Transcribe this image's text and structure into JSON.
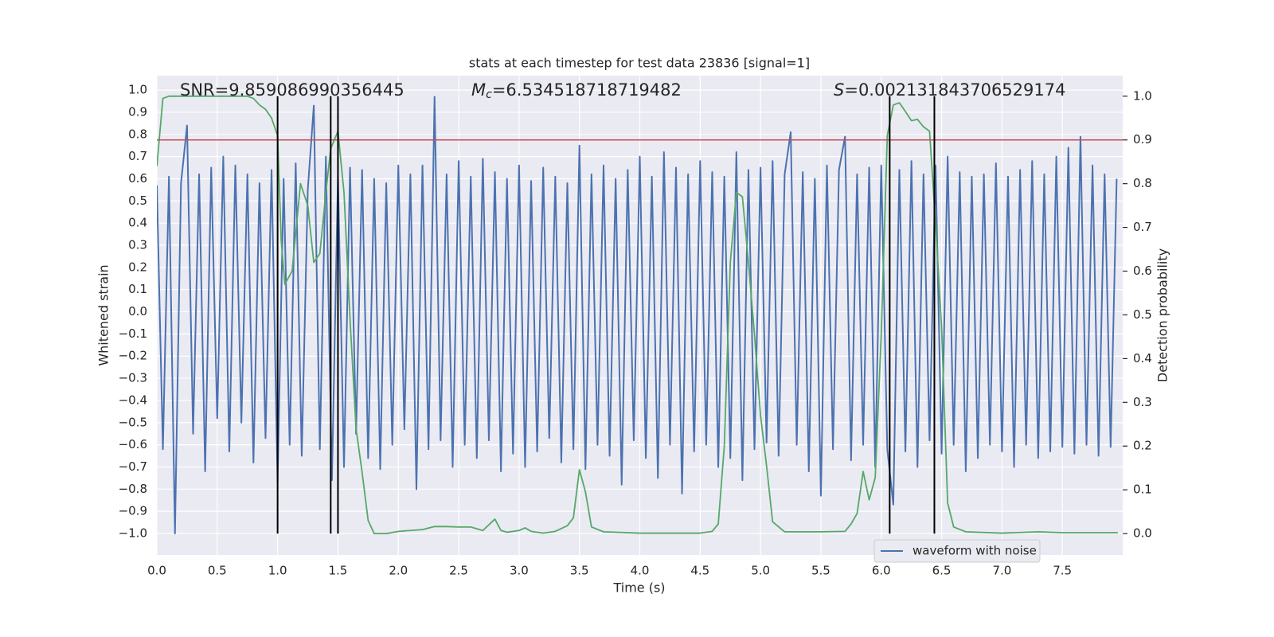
{
  "chart_data": {
    "type": "line",
    "title": "stats at each timestep for test data 23836 [signal=1]",
    "xlabel": "Time (s)",
    "ylabel": "Whitened strain",
    "y2label": "Detection probability",
    "annotations": [
      {
        "text": "SNR=9.859086990356445"
      },
      {
        "symbol": "M",
        "subscript": "c",
        "text": "=6.534518718719482"
      },
      {
        "symbol": "S",
        "text": "=0.002131843706529174"
      }
    ],
    "xlim": [
      0,
      8
    ],
    "ylim": [
      -1.097,
      1.065
    ],
    "y2lim": [
      -0.049,
      1.047
    ],
    "xticks": [
      {
        "value": 0,
        "label": "0.0"
      },
      0.5,
      {
        "value": 1,
        "label": "1.0"
      },
      1.5,
      {
        "value": 2,
        "label": "2.0"
      },
      2.5,
      {
        "value": 3,
        "label": "3.0"
      },
      3.5,
      {
        "value": 4,
        "label": "4.0"
      },
      4.5,
      {
        "value": 5,
        "label": "5.0"
      },
      5.5,
      {
        "value": 6,
        "label": "6.0"
      },
      6.5,
      {
        "value": 7,
        "label": "7.0"
      },
      7.5
    ],
    "yticks": [
      {
        "value": -1,
        "label": "−1.0"
      },
      {
        "value": -0.9,
        "label": "−0.9"
      },
      {
        "value": -0.8,
        "label": "−0.8"
      },
      {
        "value": -0.7,
        "label": "−0.7"
      },
      {
        "value": -0.6,
        "label": "−0.6"
      },
      {
        "value": -0.5,
        "label": "−0.5"
      },
      {
        "value": -0.4,
        "label": "−0.4"
      },
      {
        "value": -0.3,
        "label": "−0.3"
      },
      {
        "value": -0.2,
        "label": "−0.2"
      },
      {
        "value": -0.1,
        "label": "−0.1"
      },
      {
        "value": 0,
        "label": "0.0"
      },
      0.1,
      0.2,
      0.3,
      0.4,
      0.5,
      0.6,
      0.7,
      0.8,
      0.9,
      {
        "value": 1,
        "label": "1.0"
      }
    ],
    "y2ticks": [
      {
        "value": 0,
        "label": "0.0"
      },
      0.1,
      0.2,
      0.3,
      0.4,
      0.5,
      0.6,
      0.7,
      0.8,
      0.9,
      {
        "value": 1,
        "label": "1.0"
      }
    ],
    "grid": true,
    "legend": "lower right",
    "series": [
      {
        "name": "waveform with noise",
        "color": "#4c72b0",
        "x": [
          0,
          0.05,
          0.1,
          0.15,
          0.2,
          0.25,
          0.3,
          0.35,
          0.4,
          0.45,
          0.5,
          0.55,
          0.6,
          0.65,
          0.7,
          0.75,
          0.8,
          0.85,
          0.9,
          0.95,
          1,
          1.05,
          1.1,
          1.15,
          1.2,
          1.25,
          1.3,
          1.35,
          1.4,
          1.45,
          1.5,
          1.55,
          1.6,
          1.65,
          1.7,
          1.75,
          1.8,
          1.85,
          1.9,
          1.95,
          2,
          2.05,
          2.1,
          2.15,
          2.2,
          2.25,
          2.3,
          2.35,
          2.4,
          2.45,
          2.5,
          2.55,
          2.6,
          2.65,
          2.7,
          2.75,
          2.8,
          2.85,
          2.9,
          2.95,
          3,
          3.05,
          3.1,
          3.15,
          3.2,
          3.25,
          3.3,
          3.35,
          3.4,
          3.45,
          3.5,
          3.55,
          3.6,
          3.65,
          3.7,
          3.75,
          3.8,
          3.85,
          3.9,
          3.95,
          4,
          4.05,
          4.1,
          4.15,
          4.2,
          4.25,
          4.3,
          4.35,
          4.4,
          4.45,
          4.5,
          4.55,
          4.6,
          4.65,
          4.7,
          4.75,
          4.8,
          4.85,
          4.9,
          4.95,
          5,
          5.05,
          5.1,
          5.15,
          5.2,
          5.25,
          5.3,
          5.35,
          5.4,
          5.45,
          5.5,
          5.55,
          5.6,
          5.65,
          5.7,
          5.75,
          5.8,
          5.85,
          5.9,
          5.95,
          6,
          6.05,
          6.1,
          6.15,
          6.2,
          6.25,
          6.3,
          6.35,
          6.4,
          6.45,
          6.5,
          6.55,
          6.6,
          6.65,
          6.7,
          6.75,
          6.8,
          6.85,
          6.9,
          6.95,
          7,
          7.05,
          7.1,
          7.15,
          7.2,
          7.25,
          7.3,
          7.35,
          7.4,
          7.45,
          7.5,
          7.55,
          7.6,
          7.65,
          7.7,
          7.75,
          7.8,
          7.85,
          7.9,
          7.95
        ],
        "values": [
          0.57,
          -0.62,
          0.61,
          -1.0,
          0.58,
          0.84,
          -0.55,
          0.62,
          -0.72,
          0.65,
          -0.48,
          0.7,
          -0.63,
          0.66,
          -0.5,
          0.62,
          -0.68,
          0.58,
          -0.57,
          0.64,
          -0.77,
          0.6,
          -0.6,
          0.67,
          -0.65,
          0.55,
          0.93,
          -0.62,
          0.7,
          -0.76,
          0.61,
          -0.7,
          0.65,
          -0.55,
          0.64,
          -0.66,
          0.6,
          -0.71,
          0.58,
          -0.6,
          0.66,
          -0.53,
          0.62,
          -0.8,
          0.66,
          -0.62,
          0.97,
          -0.58,
          0.62,
          -0.7,
          0.68,
          -0.6,
          0.61,
          -0.66,
          0.69,
          -0.58,
          0.63,
          -0.72,
          0.6,
          -0.64,
          0.66,
          -0.7,
          0.59,
          -0.63,
          0.65,
          -0.57,
          0.61,
          -0.68,
          0.58,
          -0.62,
          0.75,
          -0.71,
          0.62,
          -0.6,
          0.66,
          -0.65,
          0.6,
          -0.78,
          0.64,
          -0.58,
          0.7,
          -0.66,
          0.61,
          -0.75,
          0.72,
          -0.6,
          0.65,
          -0.82,
          0.62,
          -0.63,
          0.68,
          -0.6,
          0.63,
          -0.7,
          0.61,
          -0.66,
          0.72,
          -0.76,
          0.64,
          -0.62,
          0.65,
          -0.59,
          0.68,
          -0.65,
          0.62,
          0.81,
          -0.6,
          0.63,
          -0.72,
          0.6,
          -0.83,
          0.66,
          -0.62,
          0.64,
          0.79,
          -0.67,
          0.62,
          -0.6,
          0.65,
          -0.7,
          0.66,
          -0.62,
          -0.87,
          0.64,
          -0.63,
          0.68,
          -0.7,
          0.62,
          -0.58,
          0.66,
          -0.64,
          0.7,
          -0.6,
          0.63,
          -0.72,
          0.61,
          -0.66,
          0.62,
          -0.6,
          0.67,
          -0.63,
          0.61,
          -0.7,
          0.64,
          -0.6,
          0.68,
          -0.66,
          0.62,
          -0.63,
          0.7,
          -0.61,
          0.74,
          -0.64,
          0.79,
          -0.6,
          0.66,
          -0.65,
          0.62,
          -0.61,
          0.6
        ]
      },
      {
        "color": "#55a868",
        "axis": "y2",
        "x": [
          0,
          0.05,
          0.1,
          0.75,
          0.8,
          0.85,
          0.9,
          0.95,
          1,
          1.03,
          1.06,
          1.12,
          1.19,
          1.25,
          1.3,
          1.35,
          1.4,
          1.44,
          1.5,
          1.55,
          1.6,
          1.65,
          1.7,
          1.75,
          1.8,
          1.9,
          2,
          2.1,
          2.2,
          2.3,
          2.4,
          2.5,
          2.6,
          2.7,
          2.8,
          2.85,
          2.9,
          3,
          3.05,
          3.1,
          3.2,
          3.3,
          3.4,
          3.45,
          3.5,
          3.55,
          3.6,
          3.7,
          4,
          4.5,
          4.6,
          4.65,
          4.7,
          4.75,
          4.8,
          4.85,
          4.9,
          4.95,
          5,
          5.05,
          5.1,
          5.2,
          5.5,
          5.7,
          5.75,
          5.8,
          5.85,
          5.9,
          5.95,
          6,
          6.05,
          6.1,
          6.15,
          6.2,
          6.25,
          6.3,
          6.35,
          6.4,
          6.45,
          6.5,
          6.55,
          6.6,
          6.7,
          7,
          7.3,
          7.5,
          7.96
        ],
        "values": [
          0.84,
          0.995,
          1,
          1,
          0.995,
          0.98,
          0.97,
          0.95,
          0.91,
          0.67,
          0.57,
          0.6,
          0.8,
          0.75,
          0.62,
          0.64,
          0.78,
          0.88,
          0.92,
          0.78,
          0.49,
          0.24,
          0.14,
          0.03,
          0,
          0,
          0.005,
          0.007,
          0.009,
          0.016,
          0.016,
          0.015,
          0.015,
          0.007,
          0.033,
          0.007,
          0.003,
          0.007,
          0.013,
          0.005,
          0.001,
          0.005,
          0.018,
          0.036,
          0.146,
          0.095,
          0.015,
          0.004,
          0.001,
          0.001,
          0.005,
          0.022,
          0.2,
          0.62,
          0.78,
          0.77,
          0.62,
          0.455,
          0.27,
          0.155,
          0.027,
          0.004,
          0.004,
          0.005,
          0.022,
          0.046,
          0.142,
          0.077,
          0.128,
          0.455,
          0.91,
          0.98,
          0.985,
          0.965,
          0.944,
          0.947,
          0.93,
          0.92,
          0.71,
          0.47,
          0.07,
          0.015,
          0.004,
          0.001,
          0.004,
          0.002,
          0.002
        ]
      }
    ],
    "vlines": [
      1.0,
      1.44,
      1.5,
      6.07,
      6.44
    ],
    "vline_y2_span": [
      0,
      1
    ],
    "vline_color": "#000000",
    "threshold_y2": 0.9,
    "threshold_color": "#c44e52"
  }
}
